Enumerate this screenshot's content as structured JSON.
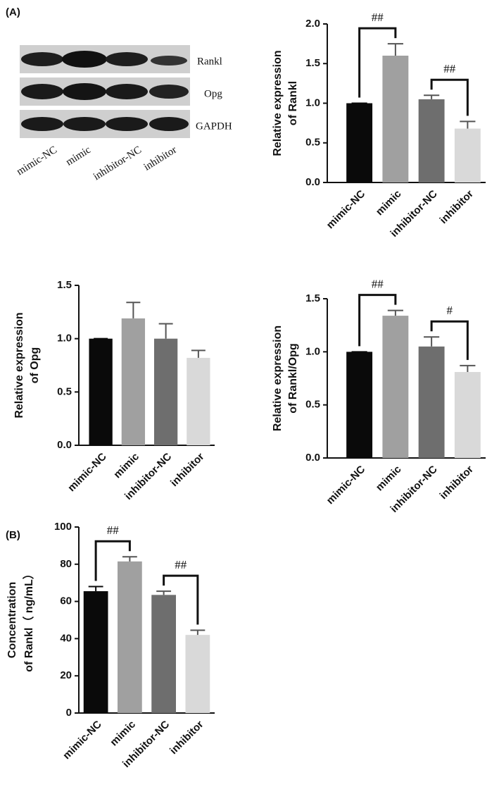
{
  "panel_labels": [
    "(A)",
    "(B)"
  ],
  "blot": {
    "bands": [
      "Rankl",
      "Opg",
      "GAPDH"
    ],
    "lanes": [
      "mimic-NC",
      "mimic",
      "inhibitor-NC",
      "inhibitor"
    ]
  },
  "chart_data": [
    {
      "type": "bar",
      "y_label": [
        "Relative expression",
        "of Rankl"
      ],
      "categories": [
        "mimic-NC",
        "mimic",
        "inhibitor-NC",
        "inhibitor"
      ],
      "values": [
        1.0,
        1.6,
        1.05,
        0.68
      ],
      "errors": [
        0,
        0.15,
        0.05,
        0.09
      ],
      "colors": [
        "#0a0a0a",
        "#a0a0a0",
        "#6e6e6e",
        "#d9d9d9"
      ],
      "ylim": [
        0,
        2
      ],
      "yticks": [
        {
          "value": 0,
          "label": "0.0"
        },
        {
          "value": 0.5,
          "label": "0.5"
        },
        {
          "value": 1,
          "label": "1.0"
        },
        {
          "value": 1.5,
          "label": "1.5"
        },
        {
          "value": 2,
          "label": "2.0"
        }
      ],
      "annotations": [
        {
          "text": "##",
          "between": [
            "mimic-NC",
            "mimic"
          ]
        },
        {
          "text": "##",
          "between": [
            "inhibitor-NC",
            "inhibitor"
          ]
        }
      ]
    },
    {
      "type": "bar",
      "y_label": [
        "Relative expression",
        "of Opg"
      ],
      "categories": [
        "mimic-NC",
        "mimic",
        "inhibitor-NC",
        "inhibitor"
      ],
      "values": [
        1.0,
        1.19,
        1.0,
        0.82
      ],
      "errors": [
        0,
        0.15,
        0.14,
        0.07
      ],
      "colors": [
        "#0a0a0a",
        "#a0a0a0",
        "#6e6e6e",
        "#d9d9d9"
      ],
      "ylim": [
        0,
        1.5
      ],
      "yticks": [
        {
          "value": 0,
          "label": "0.0"
        },
        {
          "value": 0.5,
          "label": "0.5"
        },
        {
          "value": 1,
          "label": "1.0"
        },
        {
          "value": 1.5,
          "label": "1.5"
        }
      ],
      "annotations": []
    },
    {
      "type": "bar",
      "y_label": [
        "Relative expression",
        "of Rankl/Opg"
      ],
      "categories": [
        "mimic-NC",
        "mimic",
        "inhibitor-NC",
        "inhibitor"
      ],
      "values": [
        1.0,
        1.34,
        1.05,
        0.81
      ],
      "errors": [
        0,
        0.05,
        0.09,
        0.06
      ],
      "colors": [
        "#0a0a0a",
        "#a0a0a0",
        "#6e6e6e",
        "#d9d9d9"
      ],
      "ylim": [
        0,
        1.5
      ],
      "yticks": [
        {
          "value": 0,
          "label": "0.0"
        },
        {
          "value": 0.5,
          "label": "0.5"
        },
        {
          "value": 1,
          "label": "1.0"
        },
        {
          "value": 1.5,
          "label": "1.5"
        }
      ],
      "annotations": [
        {
          "text": "##",
          "between": [
            "mimic-NC",
            "mimic"
          ]
        },
        {
          "text": "#",
          "between": [
            "inhibitor-NC",
            "inhibitor"
          ]
        }
      ]
    },
    {
      "type": "bar",
      "y_label": [
        "Concentration",
        "of Rankl（ ng/mL）"
      ],
      "categories": [
        "mimic-NC",
        "mimic",
        "inhibitor-NC",
        "inhibitor"
      ],
      "values": [
        65.5,
        81.5,
        63.5,
        42
      ],
      "errors": [
        2.5,
        2.5,
        2,
        2.5
      ],
      "colors": [
        "#0a0a0a",
        "#a0a0a0",
        "#6e6e6e",
        "#d9d9d9"
      ],
      "ylim": [
        0,
        100
      ],
      "yticks": [
        0,
        20,
        40,
        60,
        80,
        100
      ],
      "annotations": [
        {
          "text": "##",
          "between": [
            "mimic-NC",
            "mimic"
          ]
        },
        {
          "text": "##",
          "between": [
            "inhibitor-NC",
            "inhibitor"
          ]
        }
      ]
    }
  ]
}
